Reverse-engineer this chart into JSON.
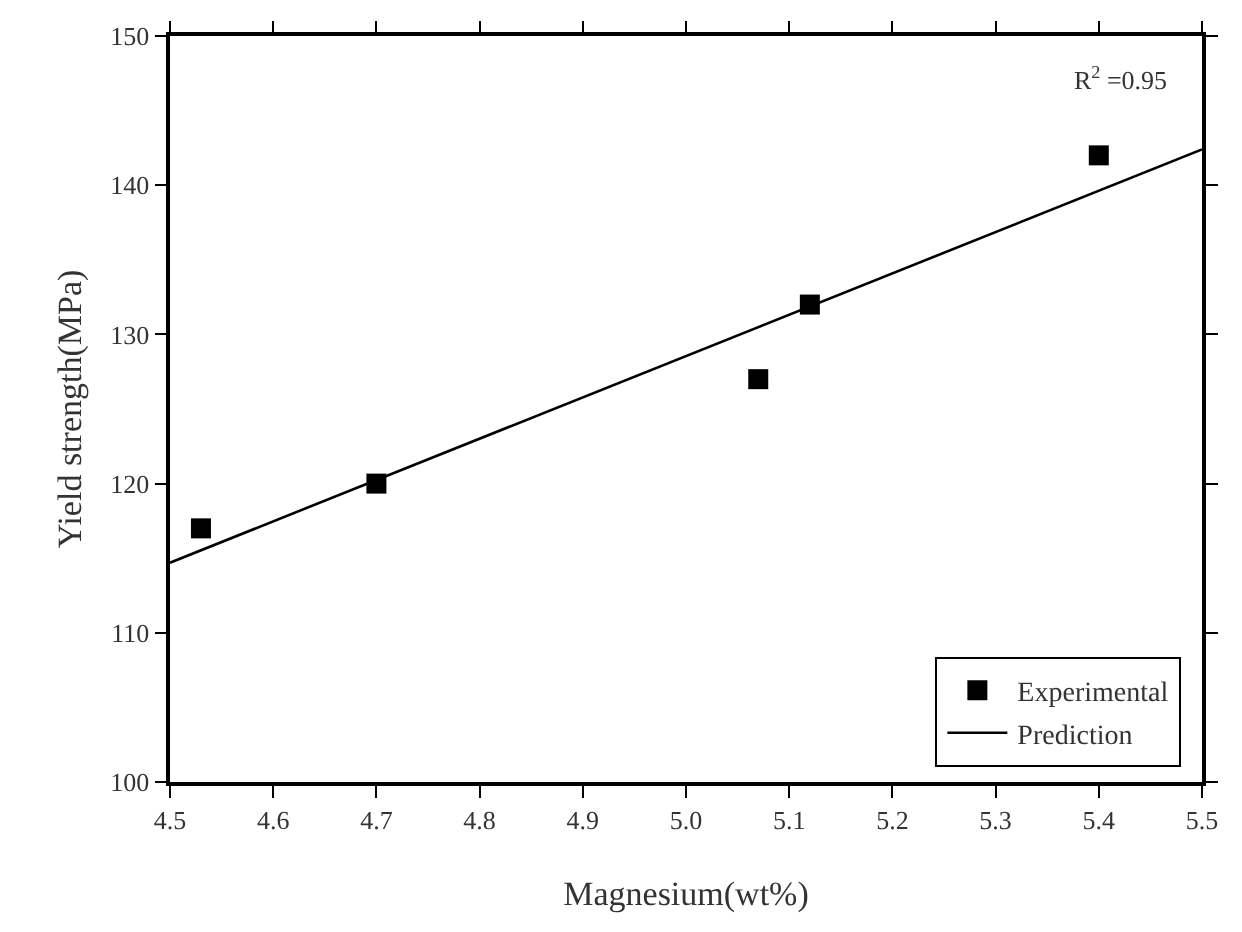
{
  "chart_data": {
    "type": "scatter",
    "xlabel": "Magnesium(wt%)",
    "ylabel": "Yield strength(MPa)",
    "xlim": [
      4.5,
      5.5
    ],
    "xticks": [
      {
        "value": 4.5,
        "label": "4.5"
      },
      {
        "value": 4.6,
        "label": "4.6"
      },
      {
        "value": 4.7,
        "label": "4.7"
      },
      {
        "value": 4.8,
        "label": "4.8"
      },
      {
        "value": 4.9,
        "label": "4.9"
      },
      {
        "value": 5,
        "label": "5.0"
      },
      {
        "value": 5.1,
        "label": "5.1"
      },
      {
        "value": 5.2,
        "label": "5.2"
      },
      {
        "value": 5.3,
        "label": "5.3"
      },
      {
        "value": 5.4,
        "label": "5.4"
      },
      {
        "value": 5.5,
        "label": "5.5"
      }
    ],
    "ylim": [
      100,
      150
    ],
    "yticks": [
      100,
      110,
      120,
      130,
      140,
      150
    ],
    "grid": false,
    "legend": "bottom right",
    "annotations": [
      "R$^{2}$ =0.95"
    ],
    "series": [
      {
        "name": "Experimental",
        "type": "scatter",
        "marker": "square",
        "color": "#000000",
        "x": [
          4.53,
          4.7,
          5.07,
          5.12,
          5.4
        ],
        "values": [
          117,
          120,
          127,
          132,
          142
        ]
      },
      {
        "name": "Prediction",
        "type": "line",
        "color": "#000000",
        "x": [
          4.5,
          5.5
        ],
        "values": [
          114.7,
          142.4
        ]
      }
    ]
  }
}
